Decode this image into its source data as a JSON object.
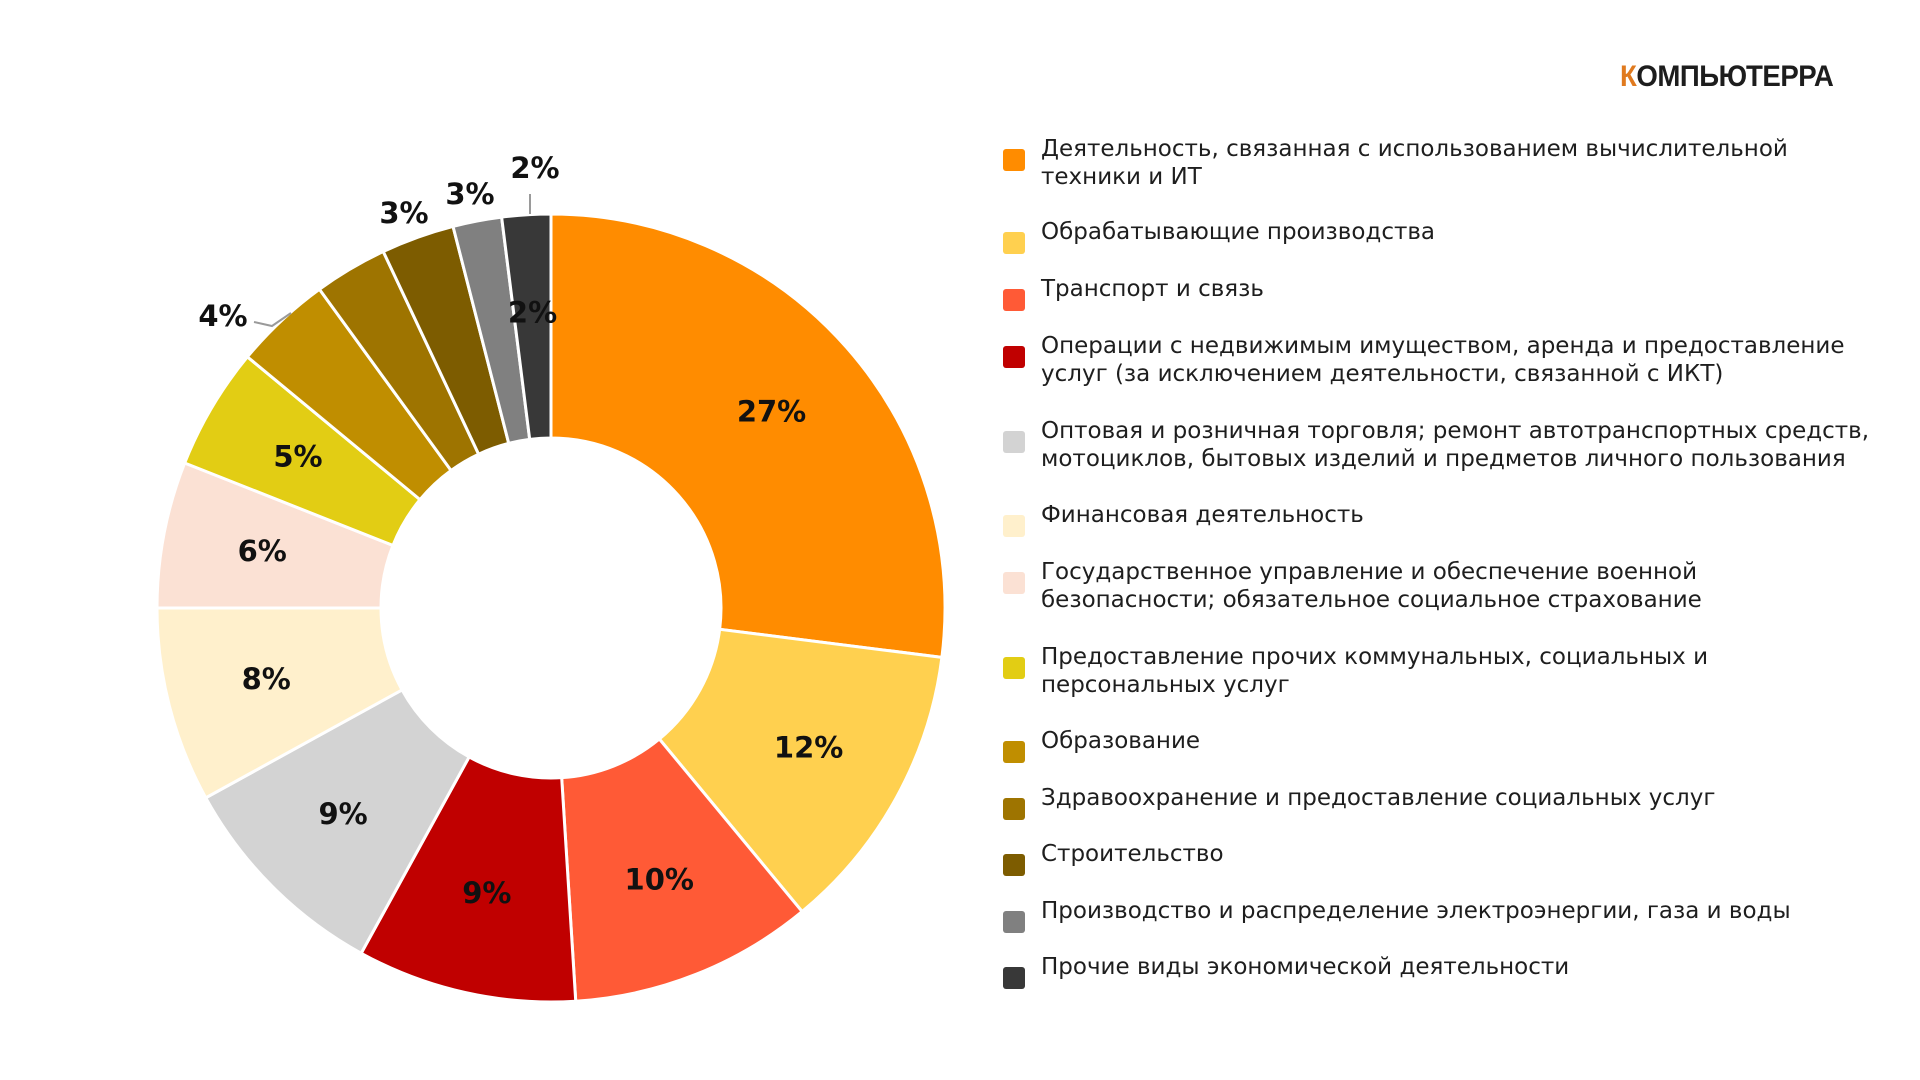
{
  "brand": {
    "first_letter": "К",
    "rest": "ОМПЬЮТЕРРА"
  },
  "chart_data": {
    "type": "pie",
    "variant": "donut",
    "unit": "%",
    "legend_position": "right",
    "categories": [
      "Деятельность, связанная с использованием вычислительной техники и ИТ",
      "Обрабатывающие производства",
      "Транспорт и связь",
      "Операции с недвижимым имуществом, аренда и предоставление услуг (за исключением деятельности, связанной с ИКТ)",
      "Оптовая и розничная торговля; ремонт автотранспортных средств, мотоциклов, бытовых изделий и предметов личного пользования",
      "Финансовая деятельность",
      "Государственное управление и обеспечение военной безопасности; обязательное социальное страхование",
      "Предоставление прочих коммунальных, социальных и персональных услуг",
      "Образование",
      "Здравоохранение и предоставление социальных услуг",
      "Строительство",
      "Производство и распределение электроэнергии, газа и воды",
      "Прочие виды экономической деятельности"
    ],
    "legend_lines": [
      [
        "Деятельность, связанная с использованием вычислительной",
        "техники и ИТ"
      ],
      [
        "Обрабатывающие производства"
      ],
      [
        "Транспорт и связь"
      ],
      [
        "Операции с недвижимым имуществом, аренда и предоставление",
        "услуг (за исключением деятельности, связанной с ИКТ)"
      ],
      [
        "Оптовая и розничная торговля; ремонт автотранспортных средств,",
        "мотоциклов, бытовых изделий и предметов личного пользования"
      ],
      [
        "Финансовая деятельность"
      ],
      [
        "Государственное управление и обеспечение военной",
        "безопасности; обязательное социальное страхование"
      ],
      [
        "Предоставление прочих коммунальных, социальных и",
        "персональных услуг"
      ],
      [
        "Образование"
      ],
      [
        "Здравоохранение и предоставление социальных услуг"
      ],
      [
        "Строительство"
      ],
      [
        "Производство и распределение электроэнергии, газа и воды"
      ],
      [
        "Прочие виды экономической деятельности"
      ]
    ],
    "values": [
      27,
      12,
      10,
      9,
      9,
      8,
      6,
      5,
      4,
      3,
      3,
      2,
      2
    ],
    "labels": [
      "27%",
      "12%",
      "10%",
      "9%",
      "9%",
      "8%",
      "6%",
      "5%",
      "4%",
      "3%",
      "3%",
      "2%",
      "2%"
    ],
    "colors": [
      "#ff8c00",
      "#ffd04f",
      "#ff5a36",
      "#c00000",
      "#d3d3d3",
      "#fff0cc",
      "#fbe1d4",
      "#e2cd14",
      "#c08e00",
      "#9e7400",
      "#7d5c00",
      "#808080",
      "#383838"
    ]
  }
}
